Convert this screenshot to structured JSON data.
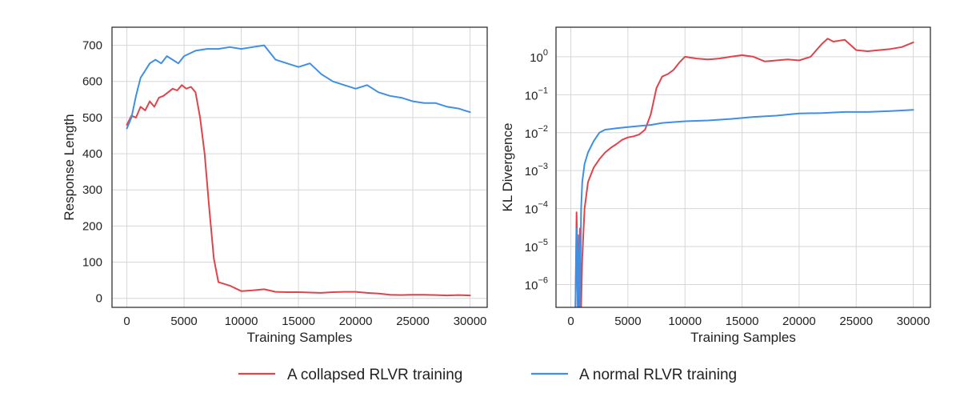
{
  "colors": {
    "collapsed": "#e0444b",
    "normal": "#3f8fe6"
  },
  "legend": {
    "placement": "bottom-center",
    "entries": [
      {
        "label": "A collapsed RLVR training",
        "color": "#e0444b"
      },
      {
        "label": "A normal RLVR training",
        "color": "#3f8fe6"
      }
    ]
  },
  "chart_data": [
    {
      "type": "line",
      "xlabel": "Training Samples",
      "ylabel": "Response Length",
      "xlim": [
        -1300,
        31500
      ],
      "ylim": [
        -25,
        750
      ],
      "xticks": [
        0,
        5000,
        10000,
        15000,
        20000,
        25000,
        30000
      ],
      "yticks": [
        0,
        100,
        200,
        300,
        400,
        500,
        600,
        700
      ],
      "grid": true,
      "series": [
        {
          "name": "A collapsed RLVR training",
          "color": "#e0444b",
          "x": [
            0,
            400,
            800,
            1200,
            1600,
            2000,
            2400,
            2800,
            3200,
            3600,
            4000,
            4400,
            4800,
            5200,
            5600,
            6000,
            6400,
            6800,
            7200,
            7600,
            8000,
            9000,
            10000,
            11000,
            12000,
            13000,
            14000,
            15000,
            16000,
            17000,
            18000,
            19000,
            20000,
            21000,
            22000,
            23000,
            24000,
            25000,
            26000,
            27000,
            28000,
            29000,
            30000
          ],
          "y": [
            480,
            505,
            500,
            530,
            520,
            545,
            530,
            555,
            560,
            570,
            580,
            575,
            590,
            580,
            585,
            570,
            500,
            400,
            250,
            110,
            45,
            35,
            20,
            22,
            25,
            18,
            17,
            17,
            16,
            15,
            17,
            18,
            18,
            15,
            13,
            10,
            9,
            10,
            10,
            9,
            8,
            9,
            8
          ]
        },
        {
          "name": "A normal RLVR training",
          "color": "#3f8fe6",
          "x": [
            0,
            400,
            800,
            1200,
            1600,
            2000,
            2500,
            3000,
            3500,
            4000,
            4500,
            5000,
            6000,
            7000,
            8000,
            9000,
            10000,
            11000,
            12000,
            13000,
            14000,
            15000,
            16000,
            17000,
            18000,
            19000,
            20000,
            21000,
            22000,
            23000,
            24000,
            25000,
            26000,
            27000,
            28000,
            29000,
            29500,
            30000
          ],
          "y": [
            470,
            500,
            560,
            610,
            630,
            650,
            660,
            650,
            670,
            660,
            650,
            670,
            685,
            690,
            690,
            695,
            690,
            695,
            700,
            660,
            650,
            640,
            650,
            620,
            600,
            590,
            580,
            590,
            570,
            560,
            555,
            545,
            540,
            540,
            530,
            525,
            520,
            515
          ]
        }
      ]
    },
    {
      "type": "line",
      "xlabel": "Training Samples",
      "ylabel": "KL Divergence",
      "yscale": "log",
      "xlim": [
        -1300,
        31500
      ],
      "ylim": [
        2.5e-07,
        6
      ],
      "xticks": [
        0,
        5000,
        10000,
        15000,
        20000,
        25000,
        30000
      ],
      "yticks": [
        1e-06,
        1e-05,
        0.0001,
        0.001,
        0.01,
        0.1,
        1
      ],
      "grid": true,
      "series": [
        {
          "name": "A collapsed RLVR training",
          "color": "#e0444b",
          "x": [
            400,
            500,
            600,
            700,
            800,
            900,
            1000,
            1200,
            1500,
            2000,
            2500,
            3000,
            3500,
            4000,
            4500,
            5000,
            5500,
            6000,
            6500,
            7000,
            7500,
            8000,
            8500,
            9000,
            9500,
            10000,
            11000,
            12000,
            13000,
            14000,
            15000,
            16000,
            17000,
            18000,
            19000,
            20000,
            21000,
            22000,
            22500,
            23000,
            24000,
            25000,
            26000,
            27000,
            28000,
            29000,
            30000
          ],
          "y": [
            2.5e-07,
            8e-05,
            3e-06,
            2.5e-07,
            3e-05,
            2.5e-07,
            5e-06,
            0.0001,
            0.0005,
            0.0012,
            0.002,
            0.003,
            0.004,
            0.005,
            0.0065,
            0.0075,
            0.008,
            0.009,
            0.012,
            0.03,
            0.15,
            0.3,
            0.35,
            0.45,
            0.7,
            1.0,
            0.9,
            0.85,
            0.9,
            1.0,
            1.1,
            1.0,
            0.75,
            0.8,
            0.85,
            0.8,
            1.0,
            2.2,
            3.0,
            2.5,
            2.8,
            1.5,
            1.4,
            1.5,
            1.6,
            1.8,
            2.4
          ]
        },
        {
          "name": "A normal RLVR training",
          "color": "#3f8fe6",
          "x": [
            400,
            500,
            600,
            700,
            800,
            900,
            1000,
            1200,
            1500,
            2000,
            2500,
            3000,
            4000,
            5000,
            6000,
            7000,
            8000,
            10000,
            12000,
            14000,
            16000,
            18000,
            20000,
            22000,
            24000,
            26000,
            28000,
            30000
          ],
          "y": [
            2.5e-07,
            3e-05,
            2.5e-07,
            2e-05,
            2.5e-07,
            0.0001,
            0.0005,
            0.0015,
            0.003,
            0.006,
            0.01,
            0.012,
            0.013,
            0.014,
            0.015,
            0.016,
            0.018,
            0.02,
            0.021,
            0.023,
            0.026,
            0.028,
            0.032,
            0.033,
            0.035,
            0.035,
            0.037,
            0.04
          ]
        }
      ]
    }
  ]
}
